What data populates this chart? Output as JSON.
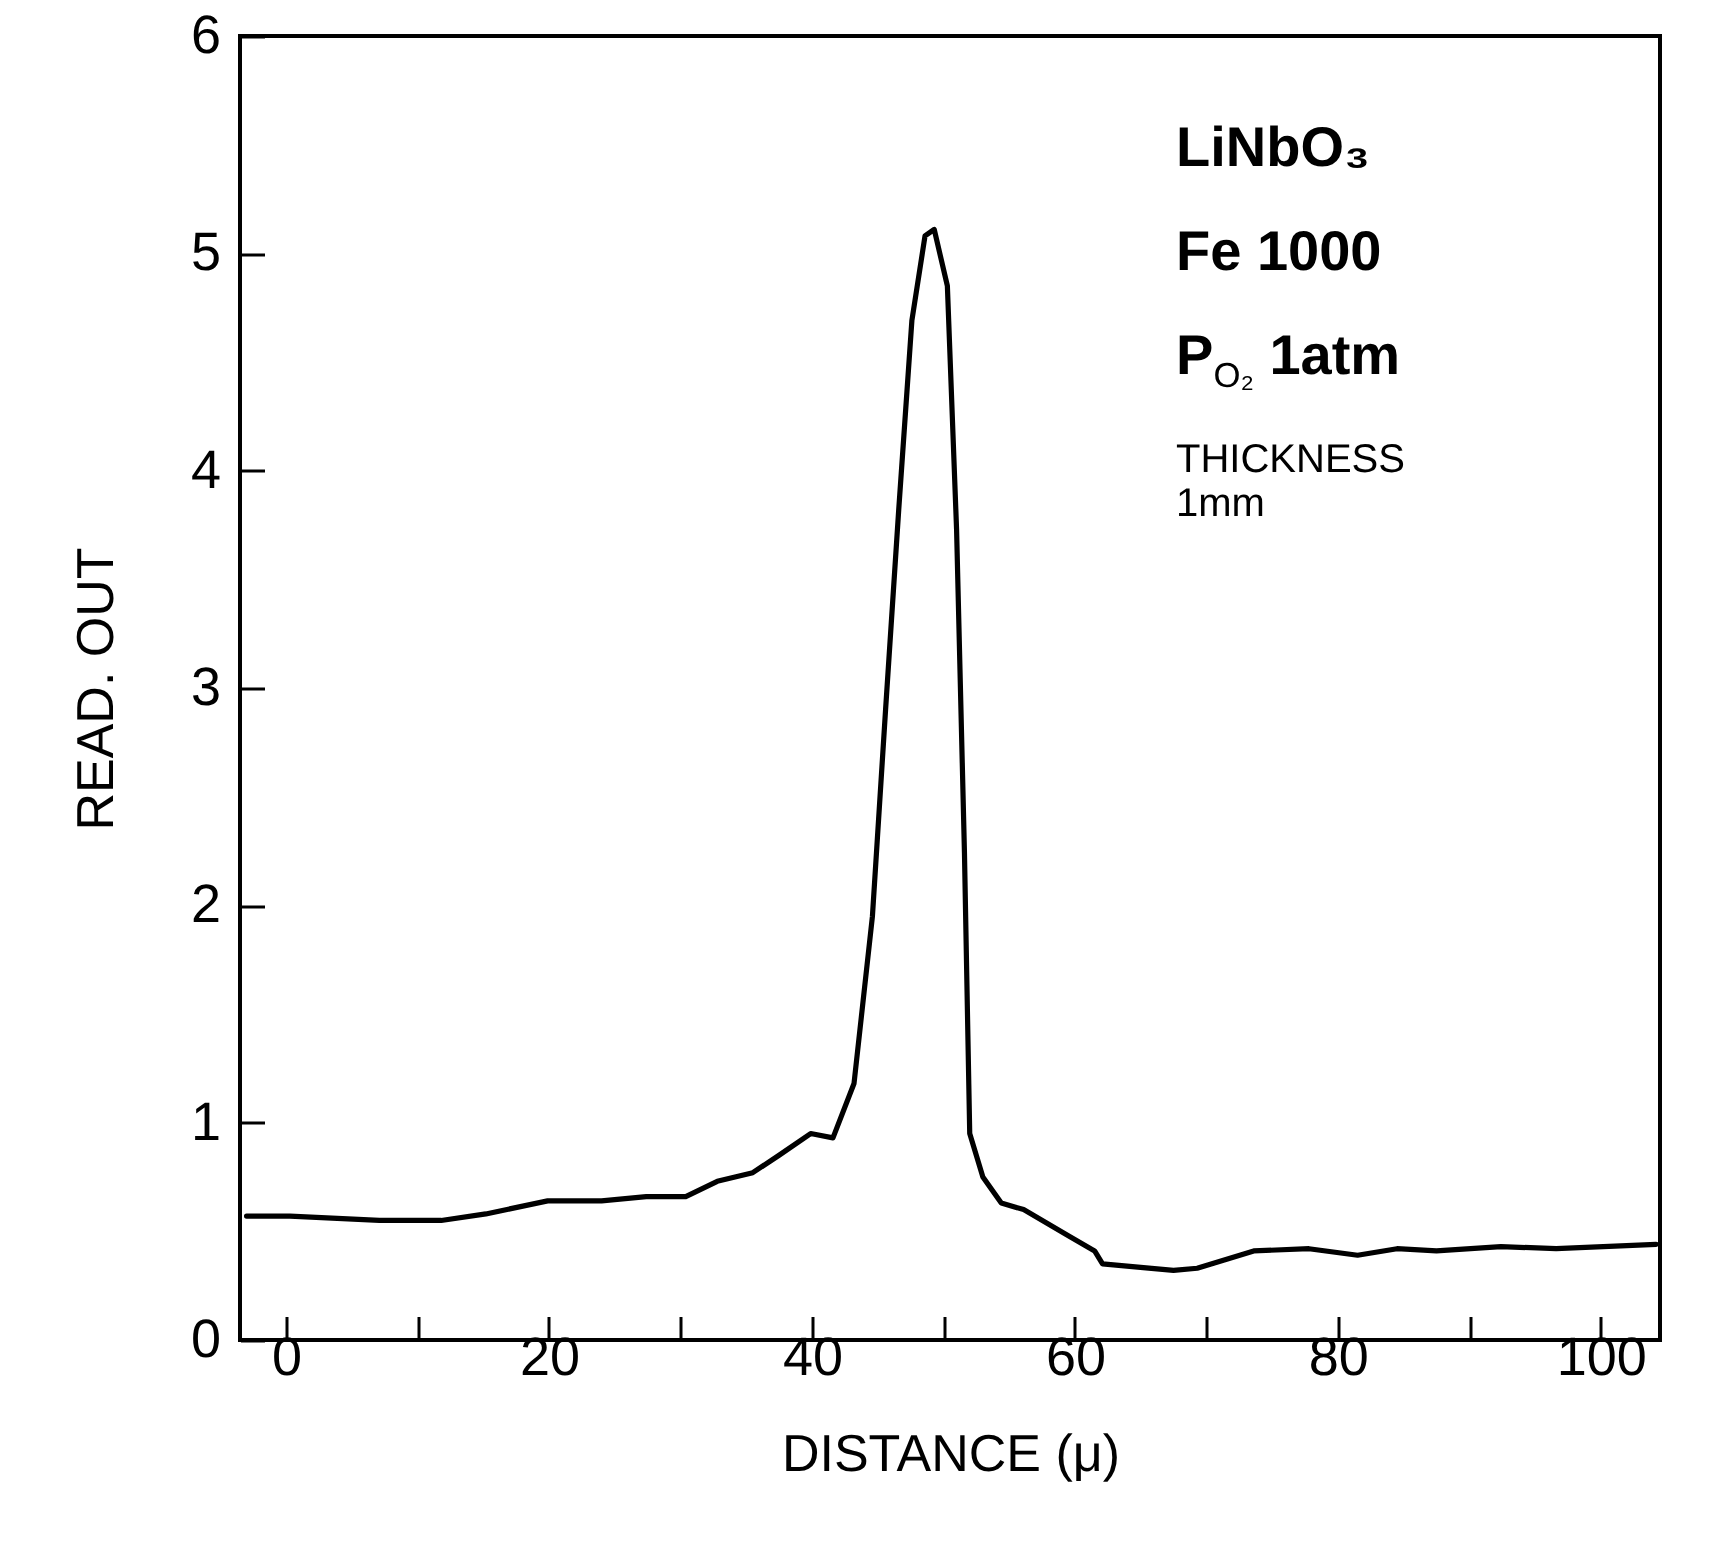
{
  "chart_data": {
    "type": "line",
    "xlabel": "DISTANCE (μ)",
    "ylabel": "READ. OUT",
    "annotations": [
      "LiNbO₃",
      "Fe 1000",
      "P$_{O₂}$ 1atm",
      "THICKNESS 1mm"
    ],
    "xlim": [
      -3.5,
      104.5
    ],
    "ylim": [
      0,
      6
    ],
    "xticks": [
      0,
      {
        "value": 10,
        "label": null
      },
      20,
      {
        "value": 30,
        "label": null
      },
      40,
      {
        "value": 50,
        "label": null
      },
      60,
      {
        "value": 70,
        "label": null
      },
      80,
      {
        "value": 90,
        "label": null
      },
      100
    ],
    "yticks": [
      0,
      1,
      2,
      3,
      4,
      5,
      6
    ],
    "grid": false,
    "marker": "none",
    "line_style": "solid",
    "series": [
      {
        "color": "#000000",
        "x": [
          -3.0,
          0.3,
          7.1,
          11.8,
          15.2,
          19.9,
          24.0,
          27.4,
          30.4,
          32.8,
          35.5,
          37.5,
          39.9,
          41.6,
          43.2,
          44.6,
          45.6,
          46.6,
          47.6,
          48.6,
          49.3,
          50.3,
          51.0,
          51.6,
          52.0,
          53.0,
          54.4,
          56.1,
          59.5,
          61.5,
          62.1,
          67.5,
          69.3,
          73.6,
          77.8,
          81.5,
          84.5,
          87.5,
          92.4,
          96.6,
          104.2
        ],
        "values": [
          0.57,
          0.57,
          0.55,
          0.55,
          0.58,
          0.64,
          0.64,
          0.66,
          0.66,
          0.73,
          0.77,
          0.85,
          0.95,
          0.93,
          1.18,
          1.95,
          2.9,
          3.82,
          4.69,
          5.08,
          5.11,
          4.85,
          3.73,
          2.24,
          0.95,
          0.75,
          0.63,
          0.6,
          0.48,
          0.41,
          0.35,
          0.32,
          0.33,
          0.41,
          0.42,
          0.39,
          0.42,
          0.41,
          0.43,
          0.42,
          0.44
        ]
      }
    ]
  }
}
